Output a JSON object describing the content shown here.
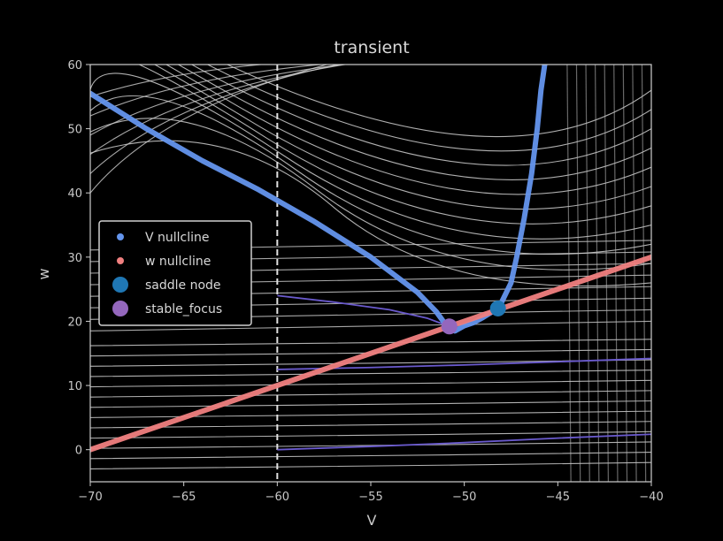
{
  "chart_data": {
    "type": "line",
    "title": "transient",
    "xlabel": "V",
    "ylabel": "w",
    "xlim": [
      -70,
      -40
    ],
    "ylim": [
      -5,
      60
    ],
    "x_ticks": [
      -70,
      -65,
      -60,
      -55,
      -50,
      -45,
      -40
    ],
    "y_ticks": [
      0,
      10,
      20,
      30,
      40,
      50,
      60
    ],
    "x_tick_labels": [
      "−70",
      "−65",
      "−60",
      "−55",
      "−50",
      "−45",
      "−40"
    ],
    "y_tick_labels": [
      "0",
      "10",
      "20",
      "30",
      "40",
      "50",
      "60"
    ],
    "grid": false,
    "legend_position": "center-left",
    "background": "#000000",
    "vertical_marker_x": -60,
    "series": [
      {
        "name": "V nullcline",
        "color": "#6495ed",
        "x": [
          -70,
          -67,
          -64,
          -61,
          -58,
          -55,
          -52.5,
          -51.5,
          -51,
          -50.8,
          -50.5,
          -50,
          -49.5,
          -49,
          -48.5,
          -48,
          -47.5,
          -47.2,
          -46.8,
          -46.4,
          -46.1,
          -45.9,
          -45.7
        ],
        "y": [
          55.5,
          50,
          45,
          40.5,
          35.5,
          30,
          24.5,
          21.5,
          19.5,
          19,
          18.5,
          19.3,
          19.8,
          20.6,
          21.5,
          23,
          26,
          30,
          36,
          43,
          50,
          56,
          60
        ]
      },
      {
        "name": "w nullcline",
        "color": "#f08080",
        "x": [
          -70,
          -40
        ],
        "y": [
          0,
          30
        ]
      }
    ],
    "points": [
      {
        "name": "saddle node",
        "color": "#1f77b4",
        "x": -48.2,
        "y": 22
      },
      {
        "name": "stable_focus",
        "color": "#9467bd",
        "x": -50.8,
        "y": 19.2
      }
    ],
    "trajectories": [
      {
        "color": "#6a5acd",
        "x": [
          -60,
          -57,
          -54,
          -52,
          -50.8
        ],
        "y": [
          24,
          23,
          21.8,
          20.5,
          19.2
        ]
      },
      {
        "color": "#6a5acd",
        "x": [
          -60,
          -55,
          -50,
          -45,
          -40
        ],
        "y": [
          12.5,
          12.8,
          13.2,
          13.7,
          14.2
        ]
      },
      {
        "color": "#6a5acd",
        "x": [
          -60,
          -55,
          -50,
          -45,
          -40
        ],
        "y": [
          0,
          0.5,
          1.1,
          1.8,
          2.4
        ]
      }
    ]
  }
}
